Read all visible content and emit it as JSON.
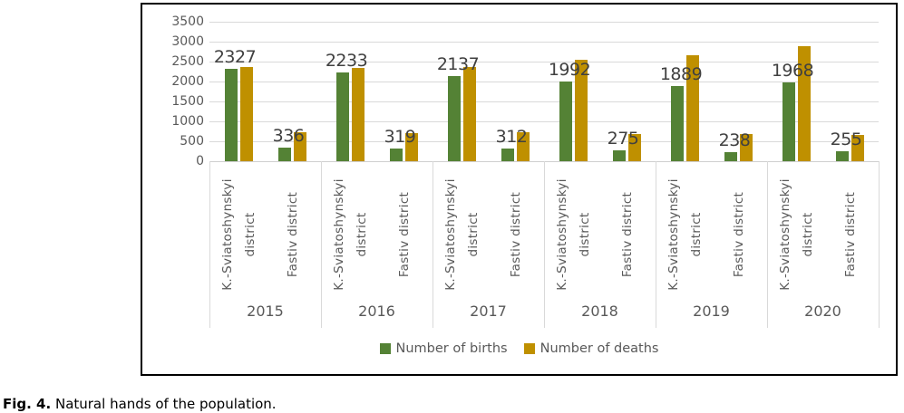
{
  "figure": {
    "caption_prefix": "Fig. 4.",
    "caption_text": "Natural hands of the population."
  },
  "chart_data": {
    "type": "bar",
    "title": "",
    "xlabel": "",
    "ylabel": "",
    "years": [
      "2015",
      "2016",
      "2017",
      "2018",
      "2019",
      "2020"
    ],
    "districts": [
      "K.-Sviatoshynskyi district",
      "Fastiv district"
    ],
    "series": [
      {
        "name": "Number of births",
        "color": "#548235",
        "data_labels_visible": true,
        "values_by_year": [
          [
            2327,
            336
          ],
          [
            2233,
            319
          ],
          [
            2137,
            312
          ],
          [
            1992,
            275
          ],
          [
            1889,
            238
          ],
          [
            1968,
            255
          ]
        ]
      },
      {
        "name": "Number of deaths",
        "color": "#BF9000",
        "data_labels_visible": false,
        "values_by_year": [
          [
            2360,
            730
          ],
          [
            2340,
            715
          ],
          [
            2360,
            720
          ],
          [
            2550,
            690
          ],
          [
            2650,
            680
          ],
          [
            2890,
            665
          ]
        ]
      }
    ],
    "ylim": [
      0,
      3500
    ],
    "yticks": [
      0,
      500,
      1000,
      1500,
      2000,
      2500,
      3000,
      3500
    ],
    "grid": true,
    "legend_position": "bottom",
    "colors": {
      "gridline": "#d9d9d9",
      "axis_line": "#cfcfcf",
      "tick_label": "#595959",
      "category_label": "#595959",
      "data_label": "#404040"
    }
  }
}
